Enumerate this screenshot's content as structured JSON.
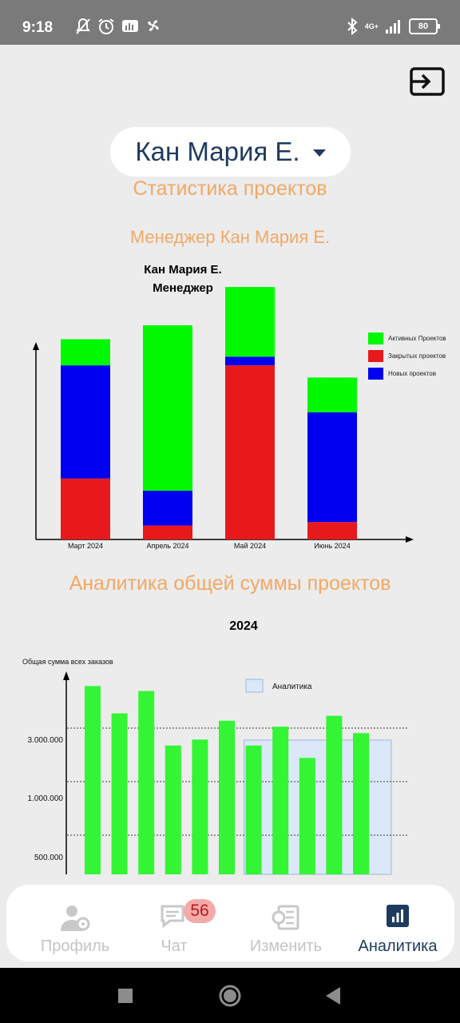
{
  "status_bar": {
    "time": "9:18",
    "network": "4G+",
    "battery": "80",
    "icons": [
      "mute-icon",
      "alarm-icon",
      "stats-icon",
      "fan-icon",
      "bluetooth-icon",
      "signal-icon",
      "battery-icon"
    ]
  },
  "header": {
    "exit_icon": "exit-icon",
    "user_selector": "Кан Мария Е."
  },
  "section1": {
    "title": "Статистика проектов",
    "subtitle": "Менеджер Кан Мария Е."
  },
  "chart_data": [
    {
      "type": "bar",
      "stacked": true,
      "title": "Кан Мария Е.",
      "subtitle": "Менеджер",
      "categories": [
        "Март 2024",
        "Апрель 2024",
        "Май 2024",
        "Июнь 2024"
      ],
      "series": [
        {
          "name": "Закрытых проектов",
          "color": "#e8191b",
          "values": [
            3.5,
            0.8,
            10,
            1
          ]
        },
        {
          "name": "Новых проектов",
          "color": "#0000f0",
          "values": [
            6.5,
            2,
            0.5,
            6.3
          ]
        },
        {
          "name": "Активных Проектов",
          "color": "#00f800",
          "values": [
            1.5,
            9.5,
            4,
            2
          ]
        }
      ],
      "legend_order": [
        "Активных Проектов",
        "Закрытых проектов",
        "Новых проектов"
      ],
      "legend_position": "right",
      "ylim": [
        0,
        14
      ],
      "grid": false
    },
    {
      "type": "bar",
      "title": "2024",
      "ylabel": "Общая сумма всех заказов",
      "yticks": [
        "3.000.000",
        "1.000.000",
        "500.000"
      ],
      "series": [
        {
          "name": "",
          "color": "#33f533",
          "values": [
            3.8,
            3.25,
            3.7,
            2.6,
            2.72,
            3.1,
            2.6,
            2.98,
            2.35,
            3.2,
            2.85
          ]
        }
      ],
      "legend": [
        {
          "name": "Аналитика",
          "color": "#dbe8f7"
        }
      ],
      "legend_position": "top-right",
      "highlight_range": [
        6,
        11
      ],
      "grid": "dashed"
    }
  ],
  "section2": {
    "title": "Аналитика общей суммы проектов"
  },
  "bottom_nav": {
    "items": [
      {
        "label": "Профиль",
        "icon": "profile-icon"
      },
      {
        "label": "Чат",
        "icon": "chat-icon"
      },
      {
        "label": "Изменить",
        "icon": "edit-document-icon"
      },
      {
        "label": "Аналитика",
        "icon": "analytics-icon"
      }
    ],
    "chat_badge": "56",
    "active": "Аналитика"
  },
  "system_nav": [
    "recents-button",
    "home-button",
    "back-button"
  ]
}
